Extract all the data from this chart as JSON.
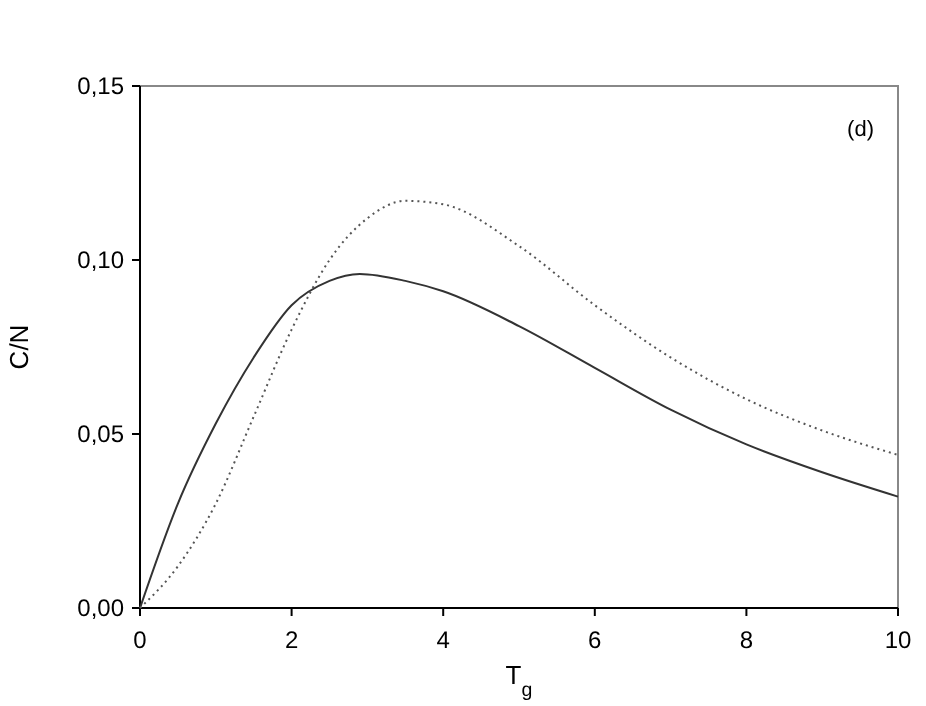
{
  "chart_data": {
    "type": "line",
    "xlabel": "T$_{g}$",
    "ylabel": "C/N",
    "annotations": [
      "(d)"
    ],
    "xlim": [
      0,
      10
    ],
    "xticks": [
      0,
      2,
      4,
      6,
      8,
      10
    ],
    "ylim": [
      0,
      0.15
    ],
    "yticks": [
      {
        "value": 0,
        "label": "0,00"
      },
      {
        "value": 0.05,
        "label": "0,05"
      },
      {
        "value": 0.1,
        "label": "0,10"
      },
      {
        "value": 0.15,
        "label": "0,15"
      }
    ],
    "series": [
      {
        "color": "#333333",
        "line_style": "solid",
        "x": [
          0,
          0.5,
          1,
          1.5,
          2,
          2.5,
          2.9,
          3.5,
          4,
          5,
          6,
          7,
          8,
          9,
          10
        ],
        "values": [
          0,
          0.03,
          0.053,
          0.072,
          0.087,
          0.094,
          0.096,
          0.094,
          0.091,
          0.081,
          0.069,
          0.057,
          0.047,
          0.039,
          0.032
        ]
      },
      {
        "color": "#555555",
        "line_style": "dotted",
        "x": [
          0,
          0.5,
          1,
          1.5,
          2,
          2.5,
          3,
          3.5,
          4,
          5,
          6,
          7,
          8,
          9,
          10
        ],
        "values": [
          0,
          0.012,
          0.03,
          0.055,
          0.08,
          0.1,
          0.112,
          0.117,
          0.116,
          0.104,
          0.087,
          0.072,
          0.06,
          0.051,
          0.044
        ]
      }
    ]
  }
}
